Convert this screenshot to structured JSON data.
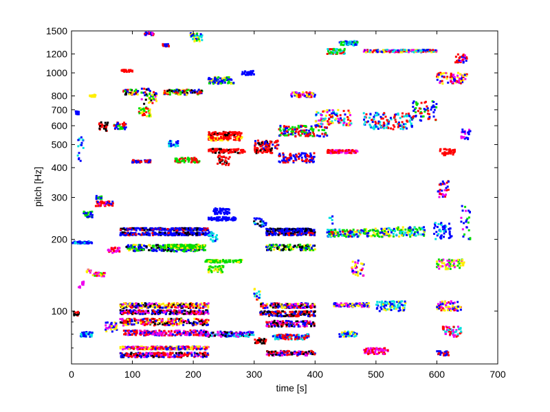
{
  "chart_data": {
    "type": "scatter",
    "title": "",
    "xlabel": "time [s]",
    "ylabel": "pitch [Hz]",
    "xscale": "linear",
    "yscale": "log",
    "xlim": [
      0,
      700
    ],
    "ylim": [
      60,
      1500
    ],
    "xticks": [
      0,
      100,
      200,
      300,
      400,
      500,
      600,
      700
    ],
    "xtick_labels": [
      "0",
      "100",
      "200",
      "300",
      "400",
      "500",
      "600",
      "700"
    ],
    "yticks": [
      100,
      200,
      300,
      400,
      500,
      600,
      700,
      800,
      1000,
      1200,
      1500
    ],
    "ytick_labels": [
      "100",
      "200",
      "300",
      "400",
      "500",
      "600",
      "700",
      "800",
      "1000",
      "1200",
      "1500"
    ],
    "grid": false,
    "legend": "none",
    "colors": [
      "#ff0000",
      "#0000ff",
      "#00dd00",
      "#ffee00",
      "#00e0e0",
      "#ee00ee",
      "#000000"
    ],
    "clusters": [
      {
        "x": [
          2,
          12
        ],
        "y": [
          95,
          100
        ],
        "colors": [
          0,
          6
        ]
      },
      {
        "x": [
          2,
          35
        ],
        "y": [
          192,
          196
        ],
        "colors": [
          1,
          1,
          1,
          4
        ]
      },
      {
        "x": [
          5,
          12
        ],
        "y": [
          670,
          690
        ],
        "colors": [
          1
        ]
      },
      {
        "x": [
          10,
          20
        ],
        "y": [
          420,
          550
        ],
        "colors": [
          1,
          4
        ]
      },
      {
        "x": [
          12,
          20
        ],
        "y": [
          125,
          135
        ],
        "colors": [
          5
        ]
      },
      {
        "x": [
          15,
          35
        ],
        "y": [
          78,
          82
        ],
        "colors": [
          1,
          4
        ]
      },
      {
        "x": [
          20,
          35
        ],
        "y": [
          245,
          262
        ],
        "colors": [
          1,
          2
        ]
      },
      {
        "x": [
          25,
          32
        ],
        "y": [
          145,
          150
        ],
        "colors": [
          3,
          5
        ]
      },
      {
        "x": [
          35,
          55
        ],
        "y": [
          140,
          145
        ],
        "colors": [
          2,
          3,
          0,
          5
        ]
      },
      {
        "x": [
          40,
          50
        ],
        "y": [
          295,
          305
        ],
        "colors": [
          1,
          2
        ]
      },
      {
        "x": [
          40,
          70
        ],
        "y": [
          276,
          290
        ],
        "colors": [
          0,
          0,
          0,
          5,
          1
        ]
      },
      {
        "x": [
          30,
          40
        ],
        "y": [
          790,
          810
        ],
        "colors": [
          3
        ]
      },
      {
        "x": [
          45,
          60
        ],
        "y": [
          570,
          620
        ],
        "colors": [
          0,
          6
        ]
      },
      {
        "x": [
          55,
          75
        ],
        "y": [
          82,
          90
        ],
        "colors": [
          3,
          1,
          5
        ]
      },
      {
        "x": [
          60,
          80
        ],
        "y": [
          175,
          185
        ],
        "colors": [
          5,
          0
        ]
      },
      {
        "x": [
          70,
          90
        ],
        "y": [
          580,
          620
        ],
        "colors": [
          0,
          1,
          2
        ]
      },
      {
        "x": [
          85,
          110
        ],
        "y": [
          810,
          850
        ],
        "colors": [
          0,
          2,
          3,
          6,
          1
        ]
      },
      {
        "x": [
          82,
          100
        ],
        "y": [
          1010,
          1030
        ],
        "colors": [
          0
        ]
      },
      {
        "x": [
          80,
          225
        ],
        "y": [
          208,
          214
        ],
        "colors": [
          1,
          1,
          1,
          1,
          6,
          0
        ]
      },
      {
        "x": [
          80,
          225
        ],
        "y": [
          218,
          223
        ],
        "colors": [
          1,
          1,
          1,
          0,
          6
        ]
      },
      {
        "x": [
          90,
          220
        ],
        "y": [
          178,
          190
        ],
        "colors": [
          1,
          2,
          2,
          3,
          6,
          1
        ]
      },
      {
        "x": [
          150,
          220
        ],
        "y": [
          183,
          190
        ],
        "colors": [
          2,
          2,
          2,
          3
        ]
      },
      {
        "x": [
          80,
          225
        ],
        "y": [
          103,
          108
        ],
        "colors": [
          3,
          0,
          6,
          1,
          5,
          3
        ]
      },
      {
        "x": [
          80,
          225
        ],
        "y": [
          97,
          101
        ],
        "colors": [
          0,
          1,
          6,
          5
        ]
      },
      {
        "x": [
          80,
          225
        ],
        "y": [
          87,
          93
        ],
        "colors": [
          0,
          1,
          6,
          5,
          3,
          0
        ]
      },
      {
        "x": [
          85,
          225
        ],
        "y": [
          79,
          83
        ],
        "colors": [
          0,
          1,
          5
        ]
      },
      {
        "x": [
          80,
          225
        ],
        "y": [
          64,
          67
        ],
        "colors": [
          0,
          0,
          1,
          6,
          5
        ]
      },
      {
        "x": [
          80,
          225
        ],
        "y": [
          69,
          71
        ],
        "colors": [
          0,
          1,
          3,
          5
        ]
      },
      {
        "x": [
          110,
          130
        ],
        "y": [
          655,
          720
        ],
        "colors": [
          0,
          2,
          3
        ]
      },
      {
        "x": [
          115,
          140
        ],
        "y": [
          740,
          860
        ],
        "colors": [
          0,
          1,
          2,
          3,
          5,
          6
        ]
      },
      {
        "x": [
          120,
          135
        ],
        "y": [
          1440,
          1480
        ],
        "colors": [
          0,
          5,
          1
        ]
      },
      {
        "x": [
          100,
          130
        ],
        "y": [
          420,
          430
        ],
        "colors": [
          0,
          1
        ]
      },
      {
        "x": [
          150,
          160
        ],
        "y": [
          1290,
          1320
        ],
        "colors": [
          0,
          1
        ]
      },
      {
        "x": [
          150,
          215
        ],
        "y": [
          810,
          850
        ],
        "colors": [
          0,
          1,
          2,
          3,
          6
        ]
      },
      {
        "x": [
          160,
          175
        ],
        "y": [
          490,
          520
        ],
        "colors": [
          1,
          4
        ]
      },
      {
        "x": [
          170,
          210
        ],
        "y": [
          420,
          440
        ],
        "colors": [
          0,
          2
        ]
      },
      {
        "x": [
          195,
          215
        ],
        "y": [
          1350,
          1480
        ],
        "colors": [
          2,
          3,
          1,
          4
        ]
      },
      {
        "x": [
          225,
          280
        ],
        "y": [
          545,
          565
        ],
        "colors": [
          0,
          0,
          0,
          0,
          6
        ]
      },
      {
        "x": [
          225,
          280
        ],
        "y": [
          520,
          540
        ],
        "colors": [
          0,
          0,
          0,
          3
        ]
      },
      {
        "x": [
          225,
          285
        ],
        "y": [
          460,
          480
        ],
        "colors": [
          0,
          0,
          0,
          0,
          6
        ]
      },
      {
        "x": [
          240,
          260
        ],
        "y": [
          410,
          450
        ],
        "colors": [
          0,
          6
        ]
      },
      {
        "x": [
          225,
          270
        ],
        "y": [
          900,
          960
        ],
        "colors": [
          1,
          2,
          3,
          1
        ]
      },
      {
        "x": [
          225,
          270
        ],
        "y": [
          240,
          248
        ],
        "colors": [
          1,
          1,
          1
        ]
      },
      {
        "x": [
          230,
          260
        ],
        "y": [
          255,
          270
        ],
        "colors": [
          1
        ]
      },
      {
        "x": [
          220,
          280
        ],
        "y": [
          160,
          164
        ],
        "colors": [
          2,
          2,
          2,
          3
        ]
      },
      {
        "x": [
          225,
          240
        ],
        "y": [
          195,
          215
        ],
        "colors": [
          1,
          4
        ]
      },
      {
        "x": [
          225,
          250
        ],
        "y": [
          145,
          155
        ],
        "colors": [
          2,
          3
        ]
      },
      {
        "x": [
          220,
          300
        ],
        "y": [
          78,
          82
        ],
        "colors": [
          1,
          4,
          5,
          6
        ]
      },
      {
        "x": [
          280,
          300
        ],
        "y": [
          980,
          1020
        ],
        "colors": [
          1
        ]
      },
      {
        "x": [
          300,
          330
        ],
        "y": [
          460,
          480
        ],
        "colors": [
          0,
          0,
          0,
          6
        ]
      },
      {
        "x": [
          300,
          340
        ],
        "y": [
          480,
          520
        ],
        "colors": [
          0,
          0,
          6,
          1
        ]
      },
      {
        "x": [
          300,
          320
        ],
        "y": [
          225,
          245
        ],
        "colors": [
          1,
          1,
          4,
          6
        ]
      },
      {
        "x": [
          320,
          400
        ],
        "y": [
          208,
          215
        ],
        "colors": [
          1,
          1,
          1,
          0,
          6
        ]
      },
      {
        "x": [
          320,
          400
        ],
        "y": [
          216,
          222
        ],
        "colors": [
          1,
          1,
          6
        ]
      },
      {
        "x": [
          320,
          400
        ],
        "y": [
          180,
          190
        ],
        "colors": [
          1,
          2,
          2,
          3,
          6
        ]
      },
      {
        "x": [
          300,
          310
        ],
        "y": [
          110,
          125
        ],
        "colors": [
          3,
          0,
          1,
          4
        ]
      },
      {
        "x": [
          310,
          400
        ],
        "y": [
          103,
          108
        ],
        "colors": [
          3,
          0,
          6,
          1,
          5
        ]
      },
      {
        "x": [
          310,
          400
        ],
        "y": [
          95,
          100
        ],
        "colors": [
          0,
          1,
          6
        ]
      },
      {
        "x": [
          320,
          400
        ],
        "y": [
          86,
          91
        ],
        "colors": [
          0,
          1,
          6,
          5
        ]
      },
      {
        "x": [
          300,
          320
        ],
        "y": [
          73,
          77
        ],
        "colors": [
          0,
          6
        ]
      },
      {
        "x": [
          320,
          400
        ],
        "y": [
          65,
          68
        ],
        "colors": [
          0,
          1,
          6,
          5
        ]
      },
      {
        "x": [
          330,
          390
        ],
        "y": [
          76,
          80
        ],
        "colors": [
          0,
          1,
          4
        ]
      },
      {
        "x": [
          360,
          400
        ],
        "y": [
          790,
          830
        ],
        "colors": [
          0,
          1,
          3,
          5
        ]
      },
      {
        "x": [
          340,
          400
        ],
        "y": [
          420,
          460
        ],
        "colors": [
          1,
          0
        ]
      },
      {
        "x": [
          340,
          420
        ],
        "y": [
          540,
          600
        ],
        "colors": [
          0,
          1,
          2
        ]
      },
      {
        "x": [
          400,
          460
        ],
        "y": [
          600,
          700
        ],
        "colors": [
          0,
          1,
          4,
          3,
          5
        ]
      },
      {
        "x": [
          420,
          470
        ],
        "y": [
          460,
          475
        ],
        "colors": [
          0,
          0,
          0,
          5
        ]
      },
      {
        "x": [
          420,
          430
        ],
        "y": [
          200,
          250
        ],
        "colors": [
          1,
          4
        ]
      },
      {
        "x": [
          420,
          450
        ],
        "y": [
          1200,
          1260
        ],
        "colors": [
          2,
          0,
          4
        ]
      },
      {
        "x": [
          440,
          470
        ],
        "y": [
          1300,
          1360
        ],
        "colors": [
          1,
          2,
          4
        ]
      },
      {
        "x": [
          420,
          480
        ],
        "y": [
          205,
          220
        ],
        "colors": [
          1,
          2,
          3,
          0,
          4
        ]
      },
      {
        "x": [
          460,
          480
        ],
        "y": [
          140,
          165
        ],
        "colors": [
          3,
          1,
          5,
          0
        ]
      },
      {
        "x": [
          430,
          490
        ],
        "y": [
          104,
          108
        ],
        "colors": [
          3,
          1,
          5
        ]
      },
      {
        "x": [
          440,
          470
        ],
        "y": [
          78,
          82
        ],
        "colors": [
          1,
          4,
          3
        ]
      },
      {
        "x": [
          480,
          600
        ],
        "y": [
          1220,
          1250
        ],
        "colors": [
          0,
          1,
          4,
          5,
          3
        ]
      },
      {
        "x": [
          480,
          520
        ],
        "y": [
          205,
          222
        ],
        "colors": [
          1,
          2,
          3
        ]
      },
      {
        "x": [
          520,
          580
        ],
        "y": [
          205,
          225
        ],
        "colors": [
          2,
          1,
          3,
          4
        ]
      },
      {
        "x": [
          480,
          560
        ],
        "y": [
          580,
          680
        ],
        "colors": [
          0,
          4,
          1
        ]
      },
      {
        "x": [
          500,
          550
        ],
        "y": [
          100,
          110
        ],
        "colors": [
          4,
          3,
          1
        ]
      },
      {
        "x": [
          480,
          520
        ],
        "y": [
          66,
          70
        ],
        "colors": [
          0,
          5
        ]
      },
      {
        "x": [
          560,
          600
        ],
        "y": [
          630,
          760
        ],
        "colors": [
          0,
          1,
          2
        ]
      },
      {
        "x": [
          595,
          625
        ],
        "y": [
          200,
          235
        ],
        "colors": [
          1,
          1,
          1,
          4
        ]
      },
      {
        "x": [
          605,
          630
        ],
        "y": [
          450,
          480
        ],
        "colors": [
          0,
          0,
          0
        ]
      },
      {
        "x": [
          600,
          650
        ],
        "y": [
          900,
          1000
        ],
        "colors": [
          0,
          3,
          5,
          1
        ]
      },
      {
        "x": [
          600,
          620
        ],
        "y": [
          300,
          360
        ],
        "colors": [
          0,
          1,
          5
        ]
      },
      {
        "x": [
          600,
          640
        ],
        "y": [
          100,
          110
        ],
        "colors": [
          3,
          5,
          1,
          0
        ]
      },
      {
        "x": [
          600,
          645
        ],
        "y": [
          150,
          165
        ],
        "colors": [
          2,
          3,
          5
        ]
      },
      {
        "x": [
          610,
          640
        ],
        "y": [
          78,
          86
        ],
        "colors": [
          0,
          5,
          4
        ]
      },
      {
        "x": [
          600,
          620
        ],
        "y": [
          65,
          68
        ],
        "colors": [
          0,
          1
        ]
      },
      {
        "x": [
          630,
          650
        ],
        "y": [
          1100,
          1200
        ],
        "colors": [
          0,
          1,
          5
        ]
      },
      {
        "x": [
          640,
          655
        ],
        "y": [
          200,
          280
        ],
        "colors": [
          1,
          2,
          5
        ]
      },
      {
        "x": [
          640,
          655
        ],
        "y": [
          520,
          580
        ],
        "colors": [
          1,
          5
        ]
      }
    ]
  }
}
